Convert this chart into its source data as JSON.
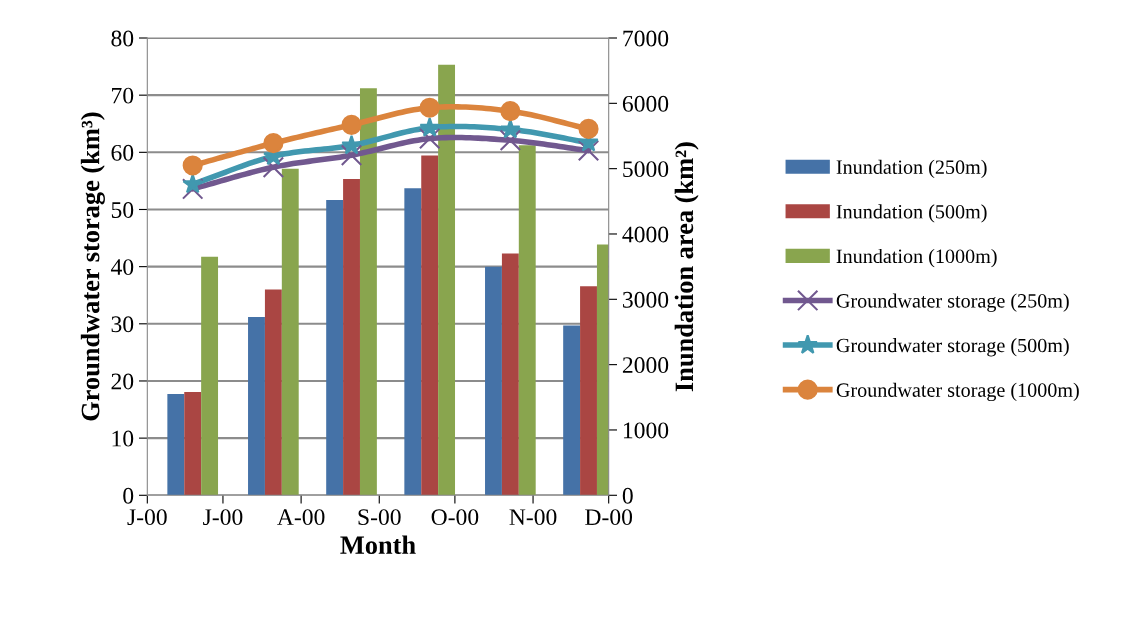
{
  "chart_data": {
    "type": "bar",
    "xlabel": "Month",
    "ylabel": "Groundwater storage (km³)",
    "y2label": "Inundation area (km²)",
    "x": [
      "2000-06-19",
      "2000-07-21",
      "2000-08-21",
      "2000-09-21",
      "2000-10-23",
      "2000-11-23"
    ],
    "xlim": [
      "2000-06-01",
      "2000-12-01"
    ],
    "xticks": [
      {
        "value": "2000-06-01",
        "label": "J-00"
      },
      {
        "value": "2000-07-01",
        "label": "J-00"
      },
      {
        "value": "2000-08-01",
        "label": "A-00"
      },
      {
        "value": "2000-09-01",
        "label": "S-00"
      },
      {
        "value": "2000-10-01",
        "label": "O-00"
      },
      {
        "value": "2000-11-01",
        "label": "N-00"
      },
      {
        "value": "2000-12-01",
        "label": "D-00"
      }
    ],
    "ylim": [
      0,
      80
    ],
    "yticks": [
      0,
      10,
      20,
      30,
      40,
      50,
      60,
      70,
      80
    ],
    "y2lim": [
      0,
      7000
    ],
    "y2ticks": [
      0,
      1000,
      2000,
      3000,
      4000,
      5000,
      6000,
      7000
    ],
    "grid": "y",
    "legend": "right",
    "series": [
      {
        "name": "Inundation (250m)",
        "axis": "y2",
        "color": "#4572a7",
        "values": [
          1550,
          2730,
          4520,
          4700,
          3500,
          2600
        ]
      },
      {
        "name": "Inundation (500m)",
        "axis": "y2",
        "color": "#aa4643",
        "values": [
          1580,
          3150,
          4840,
          5200,
          3700,
          3200
        ]
      },
      {
        "name": "Inundation (1000m)",
        "axis": "y2",
        "color": "#89a54e",
        "values": [
          3650,
          5000,
          6230,
          6590,
          5360,
          3840
        ]
      },
      {
        "name": "Groundwater storage (250m)",
        "type": "line",
        "axis": "y",
        "marker": "cross",
        "color": "#71588f",
        "values": [
          53.6,
          57.4,
          59.5,
          62.4,
          62.1,
          60.3
        ]
      },
      {
        "name": "Groundwater storage (500m)",
        "type": "line",
        "axis": "y",
        "marker": "star",
        "color": "#4198af",
        "values": [
          54.4,
          59.3,
          61.2,
          64.3,
          64.0,
          61.7
        ]
      },
      {
        "name": "Groundwater storage (1000m)",
        "type": "line",
        "axis": "y",
        "marker": "circle",
        "color": "#db843d",
        "values": [
          57.7,
          61.6,
          64.8,
          67.8,
          67.2,
          64.1
        ]
      }
    ]
  }
}
